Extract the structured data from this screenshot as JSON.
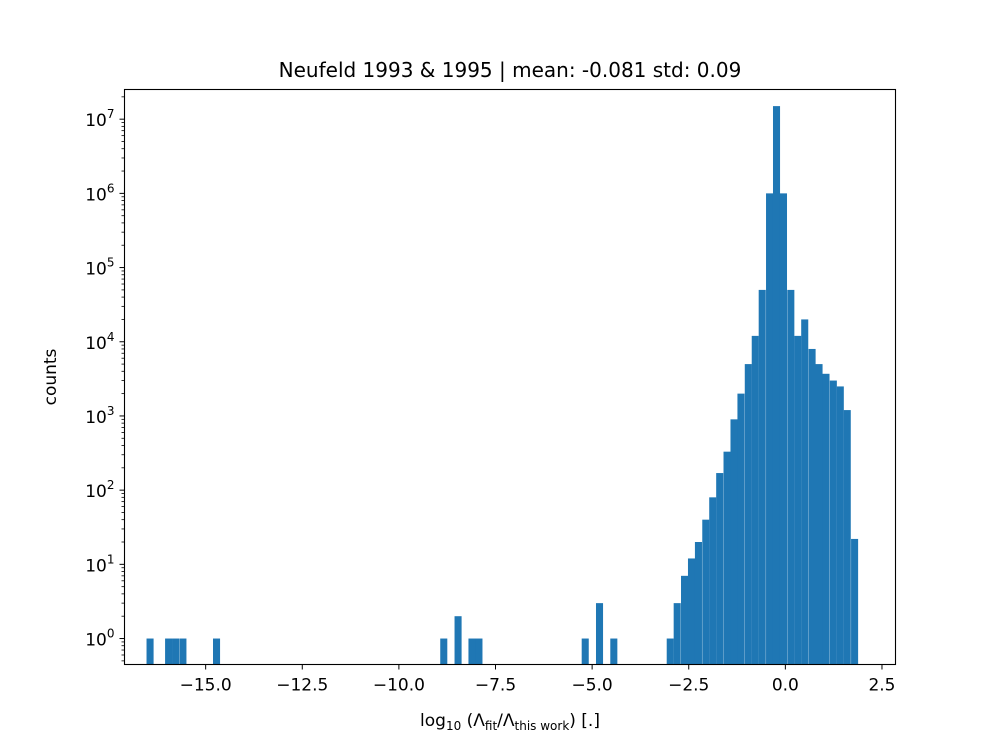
{
  "chart_data": {
    "type": "histogram",
    "title": "Neufeld 1993 & 1995 | mean: -0.081 std: 0.09",
    "xlabel": {
      "prefix": "log",
      "prefix_sub": "10",
      "open": " (Λ",
      "sub1": "fit",
      "mid": "/Λ",
      "sub2": "this work",
      "close": ") [.]"
    },
    "ylabel": "counts",
    "xlim": [
      -17.1,
      2.85
    ],
    "ylim_log10": [
      -0.35,
      7.4
    ],
    "y_scale": "log",
    "grid": false,
    "color": "#1f77b4",
    "x_ticks": [
      -15.0,
      -12.5,
      -10.0,
      -7.5,
      -5.0,
      -2.5,
      0.0,
      2.5
    ],
    "x_tick_labels": [
      "−15.0",
      "−12.5",
      "−10.0",
      "−7.5",
      "−5.0",
      "−2.5",
      "0.0",
      "2.5"
    ],
    "y_ticks_exp": [
      0,
      1,
      2,
      3,
      4,
      5,
      6,
      7
    ],
    "y_tick_labels": [
      "0",
      "1",
      "2",
      "3",
      "4",
      "5",
      "6",
      "7"
    ],
    "y_tick_base": "10",
    "bin_width": 0.1827,
    "bins": [
      {
        "x0": -16.53,
        "count": 1
      },
      {
        "x0": -16.05,
        "count": 1
      },
      {
        "x0": -15.87,
        "count": 1
      },
      {
        "x0": -15.68,
        "count": 1
      },
      {
        "x0": -14.81,
        "count": 1
      },
      {
        "x0": -8.93,
        "count": 1
      },
      {
        "x0": -8.56,
        "count": 2
      },
      {
        "x0": -8.2,
        "count": 1
      },
      {
        "x0": -8.02,
        "count": 1
      },
      {
        "x0": -5.27,
        "count": 1
      },
      {
        "x0": -4.9,
        "count": 3
      },
      {
        "x0": -4.53,
        "count": 1
      },
      {
        "x0": -3.07,
        "count": 1
      },
      {
        "x0": -2.89,
        "count": 3
      },
      {
        "x0": -2.7,
        "count": 7
      },
      {
        "x0": -2.52,
        "count": 12
      },
      {
        "x0": -2.34,
        "count": 20
      },
      {
        "x0": -2.15,
        "count": 40
      },
      {
        "x0": -1.97,
        "count": 80
      },
      {
        "x0": -1.79,
        "count": 170
      },
      {
        "x0": -1.6,
        "count": 330
      },
      {
        "x0": -1.42,
        "count": 900
      },
      {
        "x0": -1.24,
        "count": 2000
      },
      {
        "x0": -1.05,
        "count": 5000
      },
      {
        "x0": -0.87,
        "count": 12000
      },
      {
        "x0": -0.69,
        "count": 50000
      },
      {
        "x0": -0.5,
        "count": 1000000
      },
      {
        "x0": -0.32,
        "count": 15000000
      },
      {
        "x0": -0.14,
        "count": 1000000
      },
      {
        "x0": 0.05,
        "count": 50000
      },
      {
        "x0": 0.23,
        "count": 12000
      },
      {
        "x0": 0.41,
        "count": 20000
      },
      {
        "x0": 0.6,
        "count": 8000
      },
      {
        "x0": 0.78,
        "count": 5000
      },
      {
        "x0": 0.96,
        "count": 3700
      },
      {
        "x0": 1.15,
        "count": 3000
      },
      {
        "x0": 1.33,
        "count": 2500
      },
      {
        "x0": 1.51,
        "count": 1200
      },
      {
        "x0": 1.7,
        "count": 22
      }
    ]
  }
}
